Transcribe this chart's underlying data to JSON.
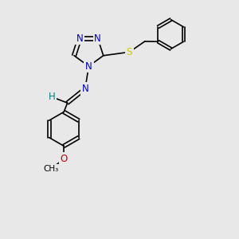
{
  "background_color": "#e8e8e8",
  "atom_colors": {
    "N": "#0000cc",
    "S": "#cccc00",
    "O": "#cc0000",
    "C": "#000000",
    "H": "#008080"
  },
  "bond_color": "#000000",
  "bond_width": 1.2,
  "figsize": [
    3.0,
    3.0
  ],
  "dpi": 100
}
